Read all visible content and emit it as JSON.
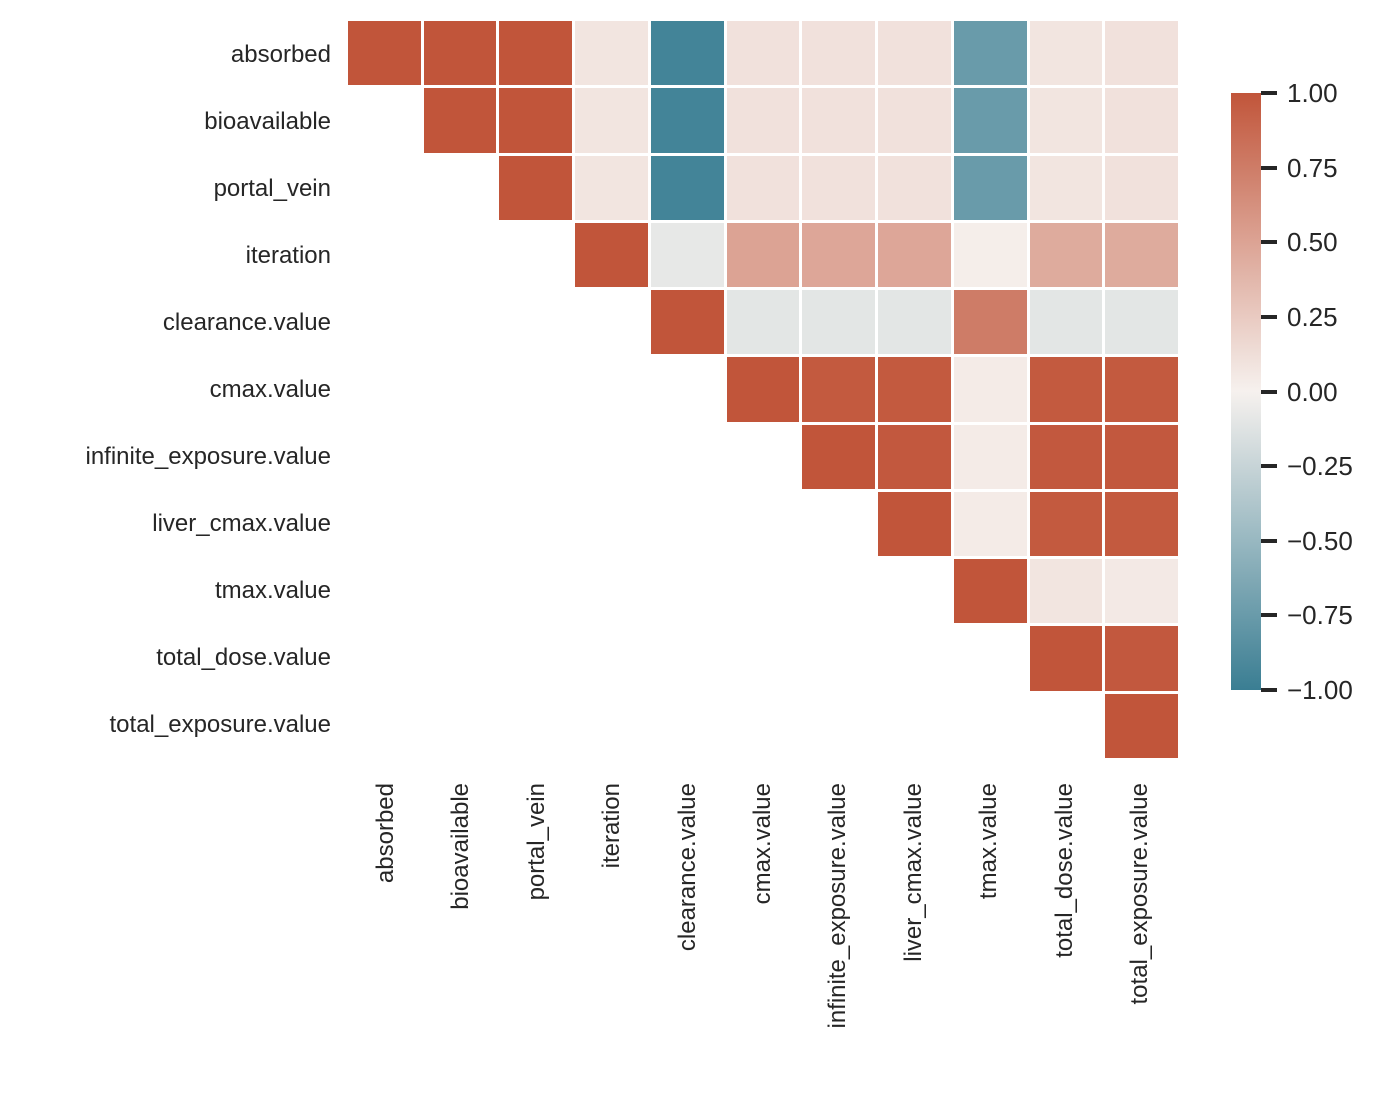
{
  "chart_data": {
    "type": "heatmap",
    "subtype": "correlation-matrix-upper-triangle",
    "title": "",
    "xlabel": "",
    "ylabel": "",
    "grid": false,
    "variables": [
      "absorbed",
      "bioavailable",
      "portal_vein",
      "iteration",
      "clearance.value",
      "cmax.value",
      "infinite_exposure.value",
      "liver_cmax.value",
      "tmax.value",
      "total_dose.value",
      "total_exposure.value"
    ],
    "matrix": [
      [
        1.0,
        1.0,
        1.0,
        0.08,
        -0.95,
        0.1,
        0.1,
        0.1,
        -0.75,
        0.08,
        0.1
      ],
      [
        null,
        1.0,
        1.0,
        0.08,
        -0.95,
        0.1,
        0.1,
        0.1,
        -0.75,
        0.08,
        0.1
      ],
      [
        null,
        null,
        1.0,
        0.08,
        -0.95,
        0.1,
        0.1,
        0.1,
        -0.75,
        0.08,
        0.1
      ],
      [
        null,
        null,
        null,
        1.0,
        -0.08,
        0.5,
        0.48,
        0.48,
        0.02,
        0.45,
        0.45
      ],
      [
        null,
        null,
        null,
        null,
        1.0,
        -0.1,
        -0.1,
        -0.1,
        0.75,
        -0.1,
        -0.1
      ],
      [
        null,
        null,
        null,
        null,
        null,
        1.0,
        0.97,
        0.97,
        0.04,
        0.97,
        0.97
      ],
      [
        null,
        null,
        null,
        null,
        null,
        null,
        1.0,
        0.98,
        0.04,
        0.98,
        0.98
      ],
      [
        null,
        null,
        null,
        null,
        null,
        null,
        null,
        1.0,
        0.04,
        0.97,
        0.97
      ],
      [
        null,
        null,
        null,
        null,
        null,
        null,
        null,
        null,
        1.0,
        0.08,
        0.05
      ],
      [
        null,
        null,
        null,
        null,
        null,
        null,
        null,
        null,
        null,
        1.0,
        0.98
      ],
      [
        null,
        null,
        null,
        null,
        null,
        null,
        null,
        null,
        null,
        null,
        1.0
      ]
    ],
    "colorbar": {
      "position": "right",
      "min": -1.0,
      "max": 1.0,
      "tick_values": [
        1.0,
        0.75,
        0.5,
        0.25,
        0.0,
        -0.25,
        -0.5,
        -0.75,
        -1.0
      ],
      "tick_labels": [
        "1.00",
        "0.75",
        "0.50",
        "0.25",
        "0.00",
        "−0.25",
        "−0.50",
        "−0.75",
        "−1.00"
      ]
    },
    "colors": {
      "positive_max": "#c1553a",
      "zero": "#f6f1ee",
      "negative_max": "#3a7e93",
      "background": "#ffffff",
      "label_text": "#262626"
    }
  }
}
